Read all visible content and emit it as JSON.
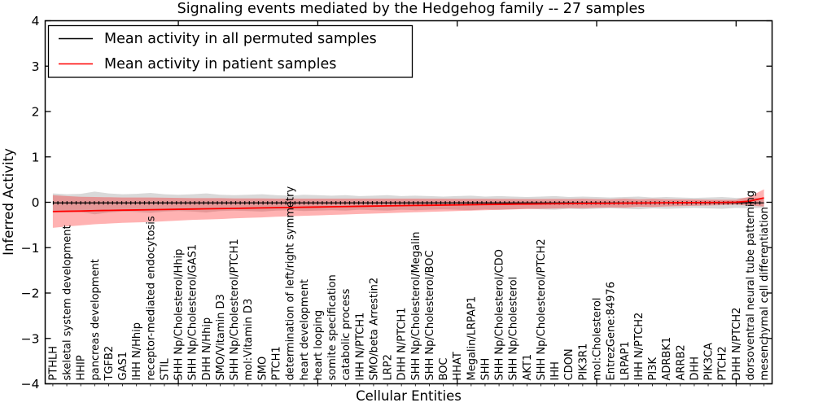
{
  "title": "Signaling events mediated by the Hedgehog family -- 27 samples",
  "axes": {
    "ylabel": "Inferred Activity",
    "xlabel": "Cellular Entities",
    "yticks": [
      "4",
      "3",
      "2",
      "1",
      "0",
      "−1",
      "−2",
      "−3",
      "−4"
    ],
    "ylim": [
      -4,
      4
    ],
    "xtick_positions": [
      10,
      20,
      30,
      40,
      50
    ]
  },
  "legend": {
    "position": "upper left",
    "items": [
      {
        "label": "Mean activity in all permuted samples",
        "color": "#000000"
      },
      {
        "label": "Mean activity in patient samples",
        "color": "#ff0000"
      }
    ]
  },
  "colors": {
    "permuted_line": "#000000",
    "permuted_band": "#aaaaaa",
    "patient_line": "#ff0000",
    "patient_band": "#ff0000",
    "frame": "#000000"
  },
  "chart_data": {
    "type": "line",
    "title": "Signaling events mediated by the Hedgehog family -- 27 samples",
    "xlabel": "Cellular Entities",
    "ylabel": "Inferred Activity",
    "ylim": [
      -4,
      4
    ],
    "grid": false,
    "legend_position": "upper left",
    "categories": [
      "PTHLH",
      "skeletal system development",
      "HHIP",
      "pancreas development",
      "TGFB2",
      "GAS1",
      "IHH N/Hhip",
      "receptor-mediated endocytosis",
      "STIL",
      "SHH Np/Cholesterol/Hhip",
      "SHH Np/Cholesterol/GAS1",
      "DHH N/Hhip",
      "SMO/Vitamin D3",
      "SHH Np/Cholesterol/PTCH1",
      "mol:Vitamin D3",
      "SMO",
      "PTCH1",
      "determination of left/right symmetry",
      "heart development",
      "heart looping",
      "somite specification",
      "catabolic process",
      "IHH N/PTCH1",
      "SMO/beta Arrestin2",
      "LRP2",
      "DHH N/PTCH1",
      "SHH Np/Cholesterol/Megalin",
      "SHH Np/Cholesterol/BOC",
      "BOC",
      "HHAT",
      "Megalin/LRPAP1",
      "SHH",
      "SHH Np/Cholesterol/CDO",
      "SHH Np/Cholesterol",
      "AKT1",
      "SHH Np/Cholesterol/PTCH2",
      "IHH",
      "CDON",
      "PIK3R1",
      "mol:Cholesterol",
      "EntrezGene:84976",
      "LRPAP1",
      "IHH N/PTCH2",
      "PI3K",
      "ADRBK1",
      "ARRB2",
      "DHH",
      "PIK3CA",
      "PTCH2",
      "DHH N/PTCH2",
      "dorsoventral neural tube patterning",
      "mesenchymal cell differentiation"
    ],
    "series": [
      {
        "name": "Mean activity in all permuted samples",
        "color": "#000000",
        "band_color": "#aaaaaa",
        "band_opacity": 0.45,
        "mean": [
          -0.03,
          -0.03,
          -0.03,
          -0.03,
          -0.03,
          -0.03,
          -0.03,
          -0.03,
          -0.03,
          -0.03,
          -0.03,
          -0.03,
          -0.03,
          -0.03,
          -0.03,
          -0.03,
          -0.03,
          -0.03,
          -0.03,
          -0.03,
          -0.03,
          -0.03,
          -0.03,
          -0.03,
          -0.03,
          -0.03,
          -0.03,
          -0.03,
          -0.03,
          -0.03,
          -0.03,
          -0.03,
          -0.03,
          -0.03,
          -0.03,
          -0.03,
          -0.03,
          -0.03,
          -0.03,
          -0.03,
          -0.03,
          -0.03,
          -0.03,
          -0.03,
          -0.03,
          -0.03,
          -0.03,
          -0.03,
          -0.03,
          -0.03,
          -0.03,
          -0.03
        ],
        "std": [
          0.21,
          0.19,
          0.2,
          0.25,
          0.21,
          0.19,
          0.2,
          0.22,
          0.19,
          0.18,
          0.19,
          0.21,
          0.18,
          0.17,
          0.18,
          0.19,
          0.17,
          0.16,
          0.18,
          0.17,
          0.16,
          0.17,
          0.15,
          0.16,
          0.17,
          0.15,
          0.16,
          0.15,
          0.14,
          0.15,
          0.16,
          0.14,
          0.15,
          0.14,
          0.13,
          0.14,
          0.15,
          0.13,
          0.14,
          0.13,
          0.12,
          0.13,
          0.14,
          0.12,
          0.13,
          0.12,
          0.11,
          0.12,
          0.13,
          0.11,
          0.12,
          0.11
        ]
      },
      {
        "name": "Mean activity in patient samples",
        "color": "#ff0000",
        "band_color": "#ff0000",
        "band_opacity": 0.3,
        "mean": [
          -0.22,
          -0.215,
          -0.21,
          -0.2,
          -0.195,
          -0.19,
          -0.185,
          -0.18,
          -0.175,
          -0.17,
          -0.165,
          -0.16,
          -0.155,
          -0.15,
          -0.145,
          -0.14,
          -0.135,
          -0.13,
          -0.125,
          -0.12,
          -0.115,
          -0.11,
          -0.105,
          -0.1,
          -0.095,
          -0.09,
          -0.085,
          -0.082,
          -0.078,
          -0.075,
          -0.07,
          -0.066,
          -0.062,
          -0.058,
          -0.055,
          -0.052,
          -0.048,
          -0.045,
          -0.042,
          -0.04,
          -0.038,
          -0.035,
          -0.033,
          -0.03,
          -0.028,
          -0.026,
          -0.024,
          -0.022,
          -0.02,
          -0.015,
          0.01,
          0.08
        ],
        "std": [
          0.36,
          0.335,
          0.315,
          0.3,
          0.29,
          0.28,
          0.275,
          0.27,
          0.26,
          0.25,
          0.24,
          0.235,
          0.23,
          0.22,
          0.215,
          0.21,
          0.2,
          0.195,
          0.19,
          0.185,
          0.18,
          0.175,
          0.17,
          0.165,
          0.16,
          0.155,
          0.15,
          0.145,
          0.14,
          0.135,
          0.13,
          0.125,
          0.12,
          0.115,
          0.11,
          0.108,
          0.105,
          0.1,
          0.105,
          0.095,
          0.09,
          0.1,
          0.085,
          0.09,
          0.08,
          0.075,
          0.07,
          0.065,
          0.06,
          0.055,
          0.1,
          0.19
        ]
      }
    ]
  }
}
